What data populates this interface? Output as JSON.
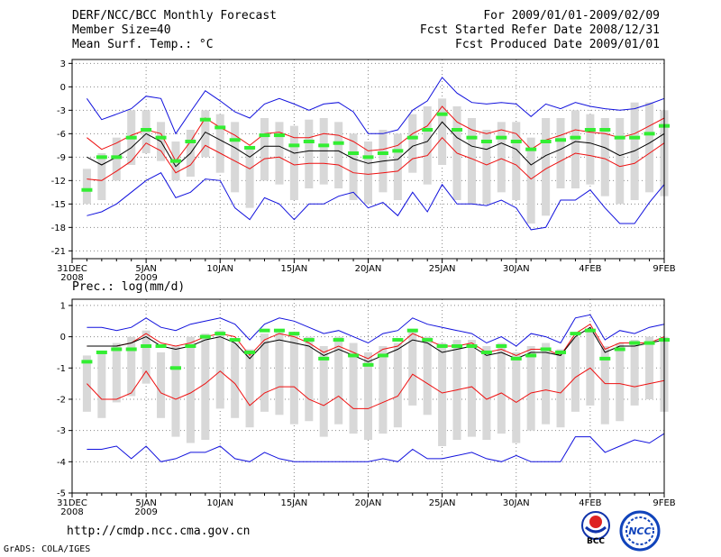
{
  "header": {
    "title": "DERF/NCC/BCC Monthly Forecast",
    "member": "Member Size=40",
    "variable1": "Mean Surf. Temp.: °C",
    "period": "For 2009/01/01-2009/02/09",
    "start": "Fcst Started Refer Date 2008/12/31",
    "produced": "Fcst Produced Date 2009/01/01"
  },
  "footer": {
    "url": "http://cmdp.ncc.cma.gov.cn",
    "credit": "GrADS: COLA/IGES"
  },
  "logos": {
    "bcc": "BCC",
    "ncc": "NCC"
  },
  "colors": {
    "mean": "#000000",
    "sd": "#ee1111",
    "range": "#1111dd",
    "box": "#d8d8d8",
    "obs": "#33ee33"
  },
  "chart_data": [
    {
      "type": "line",
      "title": "Mean Surf. Temp.: °C",
      "ylim": [
        -22,
        3.5
      ],
      "yticks": [
        3,
        0,
        -3,
        -6,
        -9,
        -12,
        -15,
        -18,
        -21
      ],
      "xlim": [
        0,
        40
      ],
      "xticks": [
        {
          "x": 0,
          "label": "31DEC",
          "sub": "2008"
        },
        {
          "x": 5,
          "label": "5JAN",
          "sub": "2009"
        },
        {
          "x": 10,
          "label": "10JAN",
          "sub": ""
        },
        {
          "x": 15,
          "label": "15JAN",
          "sub": ""
        },
        {
          "x": 20,
          "label": "20JAN",
          "sub": ""
        },
        {
          "x": 25,
          "label": "25JAN",
          "sub": ""
        },
        {
          "x": 30,
          "label": "30JAN",
          "sub": ""
        },
        {
          "x": 35,
          "label": "4FEB",
          "sub": ""
        },
        {
          "x": 40,
          "label": "9FEB",
          "sub": ""
        }
      ],
      "days": [
        1,
        2,
        3,
        4,
        5,
        6,
        7,
        8,
        9,
        10,
        11,
        12,
        13,
        14,
        15,
        16,
        17,
        18,
        19,
        20,
        21,
        22,
        23,
        24,
        25,
        26,
        27,
        28,
        29,
        30,
        31,
        32,
        33,
        34,
        35,
        36,
        37,
        38,
        39,
        40
      ],
      "series": [
        {
          "name": "max",
          "values": [
            -1.5,
            -4.2,
            -3.5,
            -2.8,
            -1.2,
            -1.5,
            -6,
            -3.2,
            -0.5,
            -1.8,
            -3.2,
            -4,
            -2.2,
            -1.5,
            -2.2,
            -3,
            -2.2,
            -2,
            -3.2,
            -6,
            -6,
            -5.5,
            -3,
            -1.8,
            1.2,
            -0.8,
            -2,
            -2.2,
            -2,
            -2.2,
            -3.8,
            -2.2,
            -2.8,
            -2,
            -2.5,
            -2.8,
            -3,
            -2.8,
            -2.2,
            -1.5
          ]
        },
        {
          "name": "plus_sd",
          "values": [
            -6.5,
            -8,
            -7.2,
            -6.2,
            -5.5,
            -6,
            -9.5,
            -7,
            -4,
            -5.2,
            -6.2,
            -7.5,
            -6,
            -5.8,
            -6.5,
            -6.5,
            -6,
            -6.2,
            -7,
            -8.2,
            -8,
            -7.5,
            -6,
            -5,
            -2.5,
            -4.5,
            -5.5,
            -6,
            -5.5,
            -6,
            -8,
            -6.8,
            -6.2,
            -5.5,
            -5.8,
            -6,
            -6.5,
            -6,
            -5,
            -4
          ]
        },
        {
          "name": "mean",
          "values": [
            -9,
            -10,
            -9,
            -7.8,
            -6,
            -7,
            -10.2,
            -8.5,
            -5.8,
            -6.8,
            -7.8,
            -9,
            -7.6,
            -7.6,
            -8.5,
            -8.2,
            -8.2,
            -8.2,
            -9.2,
            -9.8,
            -9.5,
            -9.3,
            -7.6,
            -7,
            -4.5,
            -6.5,
            -7.6,
            -8,
            -7.2,
            -8,
            -10,
            -8.8,
            -8,
            -7,
            -7.2,
            -7.8,
            -8.8,
            -8.2,
            -7.2,
            -6
          ]
        },
        {
          "name": "minus_sd",
          "values": [
            -11.8,
            -12,
            -10.8,
            -9.5,
            -7.2,
            -8.2,
            -11,
            -10,
            -7.5,
            -8.5,
            -9.5,
            -10.5,
            -9.2,
            -9,
            -10,
            -9.8,
            -9.8,
            -10,
            -11,
            -11.2,
            -11,
            -10.8,
            -9.2,
            -8.8,
            -6.5,
            -8.5,
            -9.2,
            -10,
            -9.2,
            -10,
            -11.8,
            -10.5,
            -9.5,
            -8.5,
            -8.8,
            -9.2,
            -10.2,
            -9.8,
            -8.5,
            -7.2
          ]
        },
        {
          "name": "min",
          "values": [
            -16.5,
            -16,
            -15,
            -13.5,
            -12,
            -11,
            -14.2,
            -13.5,
            -11.8,
            -12,
            -15.5,
            -17,
            -14.2,
            -15,
            -17,
            -15,
            -15,
            -14,
            -13.5,
            -15.5,
            -14.8,
            -16.5,
            -13.5,
            -16,
            -12.5,
            -15,
            -15,
            -15.2,
            -14.5,
            -15.5,
            -18.3,
            -18,
            -14.5,
            -14.5,
            -13.2,
            -15.5,
            -17.5,
            -17.5,
            -14.8,
            -12.5
          ]
        },
        {
          "name": "box_top",
          "values": [
            -10.5,
            -8.5,
            -6.5,
            -3,
            -3,
            -4.5,
            -7,
            -5.5,
            -3,
            -3.5,
            -4.5,
            -8,
            -4,
            -4.5,
            -5,
            -4.2,
            -4,
            -4.5,
            -6,
            -7,
            -5.5,
            -6,
            -3.5,
            -2.5,
            -1.5,
            -2.5,
            -4,
            -5.5,
            -4.5,
            -4.5,
            -6.5,
            -4,
            -4,
            -3,
            -3.5,
            -4,
            -4,
            -2,
            -2,
            -3
          ]
        },
        {
          "name": "box_bottom",
          "values": [
            -15,
            -14.5,
            -12,
            -10,
            -8.5,
            -9.5,
            -12,
            -11.5,
            -9,
            -11,
            -13.5,
            -15.5,
            -12,
            -12.5,
            -14.5,
            -13,
            -12.5,
            -13,
            -14.5,
            -15,
            -13.5,
            -14.5,
            -11,
            -12.5,
            -10,
            -14.5,
            -15,
            -15,
            -13.5,
            -14.5,
            -17.5,
            -16.5,
            -13,
            -13,
            -12.5,
            -14,
            -15,
            -14.5,
            -13.5,
            -14
          ]
        },
        {
          "name": "observed",
          "values": [
            -13.2,
            -9,
            -9,
            -6.5,
            -5.5,
            -6.5,
            -9.5,
            -7,
            -4.2,
            -5.2,
            -6.8,
            -7.8,
            -6.2,
            -6.2,
            -7.5,
            -7,
            -7.5,
            -7.2,
            -8.5,
            -9,
            -8.5,
            -8.2,
            -6.5,
            -5.5,
            -3.5,
            -5.5,
            -6.5,
            -7,
            -6.5,
            -7,
            -8,
            -7,
            -6.8,
            -6.5,
            -5.5,
            -5.5,
            -6.5,
            -6.5,
            -6,
            -5
          ]
        }
      ]
    },
    {
      "type": "line",
      "title": "Prec.: log(mm/d)",
      "ylim": [
        -5,
        1.2
      ],
      "yticks": [
        1,
        0,
        -1,
        -2,
        -3,
        -4,
        -5
      ],
      "xlim": [
        0,
        40
      ],
      "xticks": [
        {
          "x": 0,
          "label": "31DEC",
          "sub": "2008"
        },
        {
          "x": 5,
          "label": "5JAN",
          "sub": "2009"
        },
        {
          "x": 10,
          "label": "10JAN",
          "sub": ""
        },
        {
          "x": 15,
          "label": "15JAN",
          "sub": ""
        },
        {
          "x": 20,
          "label": "20JAN",
          "sub": ""
        },
        {
          "x": 25,
          "label": "25JAN",
          "sub": ""
        },
        {
          "x": 30,
          "label": "30JAN",
          "sub": ""
        },
        {
          "x": 35,
          "label": "4FEB",
          "sub": ""
        },
        {
          "x": 40,
          "label": "9FEB",
          "sub": ""
        }
      ],
      "days": [
        1,
        2,
        3,
        4,
        5,
        6,
        7,
        8,
        9,
        10,
        11,
        12,
        13,
        14,
        15,
        16,
        17,
        18,
        19,
        20,
        21,
        22,
        23,
        24,
        25,
        26,
        27,
        28,
        29,
        30,
        31,
        32,
        33,
        34,
        35,
        36,
        37,
        38,
        39,
        40
      ],
      "series": [
        {
          "name": "max",
          "values": [
            0.3,
            0.3,
            0.2,
            0.3,
            0.6,
            0.3,
            0.2,
            0.4,
            0.5,
            0.6,
            0.4,
            -0.1,
            0.4,
            0.6,
            0.5,
            0.3,
            0.1,
            0.2,
            0,
            -0.2,
            0.1,
            0.2,
            0.6,
            0.4,
            0.3,
            0.2,
            0.1,
            -0.2,
            0,
            -0.3,
            0.1,
            0,
            -0.2,
            0.6,
            0.7,
            -0.1,
            0.2,
            0.1,
            0.3,
            0.4
          ]
        },
        {
          "name": "plus_sd",
          "values": [
            -0.3,
            -0.3,
            -0.3,
            -0.2,
            0.1,
            -0.2,
            -0.3,
            -0.2,
            0,
            0.1,
            0,
            -0.6,
            -0.1,
            0.1,
            0,
            -0.2,
            -0.5,
            -0.3,
            -0.5,
            -0.7,
            -0.4,
            -0.3,
            0.1,
            -0.1,
            -0.3,
            -0.3,
            -0.2,
            -0.5,
            -0.4,
            -0.6,
            -0.4,
            -0.4,
            -0.6,
            0.1,
            0.4,
            -0.4,
            -0.2,
            -0.2,
            -0.2,
            0
          ]
        },
        {
          "name": "mean",
          "values": [
            -0.3,
            -0.3,
            -0.3,
            -0.2,
            0,
            -0.3,
            -0.4,
            -0.3,
            -0.1,
            0,
            -0.2,
            -0.7,
            -0.2,
            -0.1,
            -0.2,
            -0.3,
            -0.6,
            -0.4,
            -0.6,
            -0.8,
            -0.6,
            -0.4,
            -0.1,
            -0.2,
            -0.5,
            -0.4,
            -0.3,
            -0.6,
            -0.5,
            -0.7,
            -0.5,
            -0.5,
            -0.6,
            0,
            0.3,
            -0.5,
            -0.3,
            -0.3,
            -0.2,
            -0.1
          ]
        },
        {
          "name": "minus_sd",
          "values": [
            -1.5,
            -2,
            -2,
            -1.8,
            -1.1,
            -1.8,
            -2,
            -1.8,
            -1.5,
            -1.1,
            -1.5,
            -2.2,
            -1.8,
            -1.6,
            -1.6,
            -2,
            -2.2,
            -1.9,
            -2.3,
            -2.3,
            -2.1,
            -1.9,
            -1.2,
            -1.5,
            -1.8,
            -1.7,
            -1.6,
            -2,
            -1.8,
            -2.1,
            -1.8,
            -1.7,
            -1.8,
            -1.3,
            -1,
            -1.5,
            -1.5,
            -1.6,
            -1.5,
            -1.4
          ]
        },
        {
          "name": "min",
          "values": [
            -3.6,
            -3.6,
            -3.5,
            -3.9,
            -3.5,
            -4,
            -3.9,
            -3.7,
            -3.7,
            -3.5,
            -3.9,
            -4,
            -3.7,
            -3.9,
            -4,
            -4,
            -4,
            -4,
            -4,
            -4,
            -3.9,
            -4,
            -3.6,
            -3.9,
            -3.9,
            -3.8,
            -3.7,
            -3.9,
            -4,
            -3.8,
            -4,
            -4,
            -4,
            -3.2,
            -3.2,
            -3.7,
            -3.5,
            -3.3,
            -3.4,
            -3.1
          ]
        },
        {
          "name": "box_top",
          "values": [
            -0.6,
            -0.5,
            -0.2,
            0,
            0.2,
            -0.5,
            -0.3,
            0,
            0.1,
            0.2,
            -0.2,
            -0.4,
            0.1,
            0.2,
            0.1,
            0,
            -0.3,
            0,
            -0.2,
            -0.5,
            -0.3,
            -0.2,
            0.2,
            0,
            -0.2,
            -0.1,
            -0.1,
            -0.3,
            -0.2,
            -0.5,
            -0.3,
            -0.2,
            -0.4,
            0,
            0.2,
            -0.3,
            -0.2,
            -0.1,
            0,
            0
          ]
        },
        {
          "name": "box_bottom",
          "values": [
            -2.4,
            -2.6,
            -2.1,
            -1.9,
            -1.5,
            -2.6,
            -3.2,
            -3.4,
            -3.3,
            -2.3,
            -2.6,
            -2.9,
            -2.4,
            -2.5,
            -2.8,
            -2.7,
            -3.2,
            -2.8,
            -3.1,
            -3.3,
            -3.1,
            -2.9,
            -2.2,
            -2.5,
            -3.5,
            -3.3,
            -3.2,
            -3.3,
            -3.1,
            -3.4,
            -3,
            -2.8,
            -2.9,
            -2.4,
            -2.2,
            -2.8,
            -2.7,
            -2.2,
            -2,
            -2.4
          ]
        },
        {
          "name": "observed",
          "values": [
            -0.8,
            -0.5,
            -0.4,
            -0.4,
            -0.3,
            -0.3,
            -1,
            -0.3,
            0,
            0.1,
            -0.1,
            -0.5,
            0.2,
            0.2,
            0.1,
            -0.1,
            -0.7,
            -0.1,
            -0.6,
            -0.9,
            -0.6,
            -0.1,
            0.2,
            -0.1,
            -0.3,
            -0.3,
            -0.3,
            -0.5,
            -0.3,
            -0.7,
            -0.6,
            -0.4,
            -0.5,
            0.1,
            0.2,
            -0.7,
            -0.4,
            -0.2,
            -0.2,
            -0.1
          ]
        }
      ]
    }
  ]
}
